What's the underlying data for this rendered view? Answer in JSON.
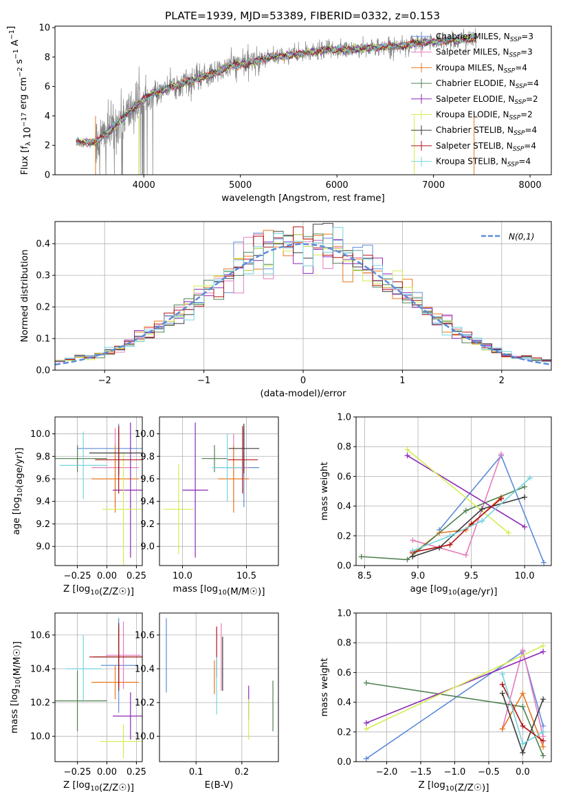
{
  "title": "PLATE=1939, MJD=53389, FIBERID=0332, z=0.153",
  "colors": {
    "Chabrier MILES": "#5b8bd9",
    "Salpeter MILES": "#e57bbc",
    "Kroupa MILES": "#e8761c",
    "Chabrier ELODIE": "#4f8050",
    "Salpeter ELODIE": "#8c27b5",
    "Kroupa ELODIE": "#d4ec4e",
    "Chabrier STELIB": "#3a3a3a",
    "Salpeter STELIB": "#b01010",
    "Kroupa STELIB": "#72d4e0",
    "observed": "#808080",
    "normal": "#5b8bd9"
  },
  "chart_data": [
    {
      "type": "line",
      "id": "spectrum",
      "xlabel": "wavelength [Angstrom, rest frame]",
      "ylabel": "Flux [f_λ 10^-17 erg cm^-2 s^-1 A^-1]",
      "xlim": [
        3080,
        8220
      ],
      "ylim": [
        0,
        10.1
      ],
      "xticks": [
        4000,
        5000,
        6000,
        7000,
        8000
      ],
      "yticks": [
        0,
        2,
        4,
        6,
        8,
        10
      ],
      "legend": [
        {
          "label": "Chabrier MILES, N",
          "sub": "SSP",
          "eq": "=3"
        },
        {
          "label": "Salpeter MILES, N",
          "sub": "SSP",
          "eq": "=3"
        },
        {
          "label": "Kroupa MILES, N",
          "sub": "SSP",
          "eq": "=4"
        },
        {
          "label": "Chabrier ELODIE, N",
          "sub": "SSP",
          "eq": "=4"
        },
        {
          "label": "Salpeter ELODIE, N",
          "sub": "SSP",
          "eq": "=2"
        },
        {
          "label": "Kroupa ELODIE, N",
          "sub": "SSP",
          "eq": "=2"
        },
        {
          "label": "Chabrier STELIB, N",
          "sub": "SSP",
          "eq": "=4"
        },
        {
          "label": "Salpeter STELIB, N",
          "sub": "SSP",
          "eq": "=4"
        },
        {
          "label": "Kroupa STELIB, N",
          "sub": "SSP",
          "eq": "=4"
        }
      ],
      "continuum": {
        "x": [
          3300,
          3500,
          3700,
          3900,
          4100,
          4300,
          4500,
          4700,
          4900,
          5100,
          5300,
          5500,
          5700,
          5900,
          6100,
          6300,
          6500,
          6700,
          6900,
          7100,
          7300,
          7450
        ],
        "y": [
          2.2,
          2.2,
          3.3,
          4.6,
          5.6,
          6.0,
          6.4,
          6.8,
          7.4,
          7.6,
          8.0,
          8.1,
          8.3,
          8.5,
          8.5,
          8.6,
          8.7,
          8.8,
          9.0,
          9.1,
          9.2,
          9.3
        ]
      }
    },
    {
      "type": "histogram",
      "id": "residuals",
      "xlabel": "(data-model)/error",
      "ylabel": "Normed distribution",
      "xlim": [
        -2.5,
        2.5
      ],
      "ylim": [
        0,
        0.47
      ],
      "xticks": [
        -2,
        -1,
        0,
        1,
        2
      ],
      "yticks": [
        0.0,
        0.1,
        0.2,
        0.3,
        0.4
      ],
      "legend": "N(0,1)",
      "bins": 50
    },
    {
      "type": "scatter",
      "id": "age_vs_Z",
      "xlabel": "Z [log10(Z/Z☉)]",
      "ylabel": "age [log10(age/yr)]",
      "xlim": [
        -0.44,
        0.3
      ],
      "ylim": [
        8.83,
        10.15
      ],
      "xticks": [
        -0.25,
        0.0,
        0.25
      ],
      "yticks": [
        9.0,
        9.2,
        9.4,
        9.6,
        9.8,
        10.0
      ],
      "points": [
        {
          "model": "Chabrier MILES",
          "x": 0.1,
          "y": 9.87,
          "xerr": 0.35,
          "yerr": 0.22
        },
        {
          "model": "Salpeter MILES",
          "x": 0.07,
          "y": 9.7,
          "xerr": 0.2,
          "yerr": 0.35
        },
        {
          "model": "Kroupa MILES",
          "x": 0.07,
          "y": 9.6,
          "xerr": 0.2,
          "yerr": 0.3
        },
        {
          "model": "Chabrier ELODIE",
          "x": -0.25,
          "y": 9.78,
          "xerr": 0.25,
          "yerr": 0.12
        },
        {
          "model": "Salpeter ELODIE",
          "x": 0.2,
          "y": 9.5,
          "xerr": 0.15,
          "yerr": 0.6
        },
        {
          "model": "Kroupa ELODIE",
          "x": 0.14,
          "y": 9.33,
          "xerr": 0.18,
          "yerr": 0.5
        },
        {
          "model": "Chabrier STELIB",
          "x": 0.1,
          "y": 9.83,
          "xerr": 0.25,
          "yerr": 0.2
        },
        {
          "model": "Salpeter STELIB",
          "x": 0.1,
          "y": 9.77,
          "xerr": 0.2,
          "yerr": 0.3
        },
        {
          "model": "Kroupa STELIB",
          "x": -0.2,
          "y": 9.72,
          "xerr": 0.2,
          "yerr": 0.3
        }
      ]
    },
    {
      "type": "scatter",
      "id": "age_vs_mass",
      "xlabel": "mass [log10(M/M☉)]",
      "ylabel": "",
      "xlim": [
        9.82,
        10.75
      ],
      "ylim": [
        8.83,
        10.15
      ],
      "xticks": [
        10.0,
        10.5
      ],
      "yticks": [
        9.0,
        9.2,
        9.4,
        9.6,
        9.8,
        10.0
      ],
      "points": [
        {
          "model": "Chabrier MILES",
          "x": 10.48,
          "y": 9.7,
          "xerr": 0.12,
          "yerr": 0.35
        },
        {
          "model": "Salpeter MILES",
          "x": 10.4,
          "y": 9.7,
          "xerr": 0.12,
          "yerr": 0.3
        },
        {
          "model": "Kroupa MILES",
          "x": 10.4,
          "y": 9.6,
          "xerr": 0.12,
          "yerr": 0.3
        },
        {
          "model": "Chabrier ELODIE",
          "x": 10.25,
          "y": 9.78,
          "xerr": 0.1,
          "yerr": 0.12
        },
        {
          "model": "Salpeter ELODIE",
          "x": 10.1,
          "y": 9.5,
          "xerr": 0.1,
          "yerr": 0.6
        },
        {
          "model": "Kroupa ELODIE",
          "x": 9.97,
          "y": 9.33,
          "xerr": 0.12,
          "yerr": 0.4
        },
        {
          "model": "Chabrier STELIB",
          "x": 10.48,
          "y": 9.87,
          "xerr": 0.12,
          "yerr": 0.22
        },
        {
          "model": "Salpeter STELIB",
          "x": 10.47,
          "y": 9.77,
          "xerr": 0.12,
          "yerr": 0.3
        },
        {
          "model": "Kroupa STELIB",
          "x": 10.35,
          "y": 9.7,
          "xerr": 0.12,
          "yerr": 0.3
        }
      ]
    },
    {
      "type": "line",
      "id": "weight_vs_age",
      "xlabel": "age [log10(age/yr)]",
      "ylabel": "mass weight",
      "xlim": [
        8.42,
        10.25
      ],
      "ylim": [
        0,
        1.0
      ],
      "xticks": [
        8.5,
        9.0,
        9.5,
        10.0
      ],
      "yticks": [
        0.0,
        0.2,
        0.4,
        0.6,
        0.8,
        1.0
      ],
      "series": [
        {
          "model": "Chabrier MILES",
          "x": [
            9.2,
            9.78,
            10.18
          ],
          "y": [
            0.24,
            0.74,
            0.02
          ]
        },
        {
          "model": "Salpeter MILES",
          "x": [
            8.95,
            9.45,
            9.78
          ],
          "y": [
            0.17,
            0.07,
            0.75
          ]
        },
        {
          "model": "Kroupa MILES",
          "x": [
            8.95,
            9.2,
            9.45,
            9.78
          ],
          "y": [
            0.08,
            0.22,
            0.24,
            0.46
          ]
        },
        {
          "model": "Chabrier ELODIE",
          "x": [
            8.47,
            8.9,
            9.45,
            10.0
          ],
          "y": [
            0.06,
            0.04,
            0.37,
            0.53
          ]
        },
        {
          "model": "Salpeter ELODIE",
          "x": [
            8.9,
            10.0
          ],
          "y": [
            0.74,
            0.26
          ]
        },
        {
          "model": "Kroupa ELODIE",
          "x": [
            8.9,
            9.85
          ],
          "y": [
            0.78,
            0.22
          ]
        },
        {
          "model": "Chabrier STELIB",
          "x": [
            8.95,
            9.2,
            9.6,
            10.0
          ],
          "y": [
            0.06,
            0.12,
            0.38,
            0.46
          ]
        },
        {
          "model": "Salpeter STELIB",
          "x": [
            8.95,
            9.3,
            9.5,
            9.78
          ],
          "y": [
            0.09,
            0.14,
            0.28,
            0.45
          ]
        },
        {
          "model": "Kroupa STELIB",
          "x": [
            8.95,
            9.3,
            9.6,
            10.05
          ],
          "y": [
            0.1,
            0.2,
            0.3,
            0.59
          ]
        }
      ]
    },
    {
      "type": "scatter",
      "id": "mass_vs_Z",
      "xlabel": "Z [log10(Z/Z☉)]",
      "ylabel": "mass [log10(M/M☉)]",
      "xlim": [
        -0.44,
        0.3
      ],
      "ylim": [
        9.85,
        10.73
      ],
      "xticks": [
        -0.25,
        0.0,
        0.25
      ],
      "yticks": [
        10.0,
        10.2,
        10.4,
        10.6
      ],
      "points": [
        {
          "model": "Chabrier MILES",
          "x": 0.1,
          "y": 10.42,
          "xerr": 0.15,
          "yerr": 0.28
        },
        {
          "model": "Salpeter MILES",
          "x": 0.14,
          "y": 10.48,
          "xerr": 0.15,
          "yerr": 0.2
        },
        {
          "model": "Kroupa MILES",
          "x": 0.07,
          "y": 10.32,
          "xerr": 0.2,
          "yerr": 0.1
        },
        {
          "model": "Chabrier ELODIE",
          "x": -0.25,
          "y": 10.21,
          "xerr": 0.25,
          "yerr": 0.18
        },
        {
          "model": "Salpeter ELODIE",
          "x": 0.2,
          "y": 10.12,
          "xerr": 0.15,
          "yerr": 0.14
        },
        {
          "model": "Kroupa ELODIE",
          "x": 0.14,
          "y": 9.97,
          "xerr": 0.2,
          "yerr": 0.1
        },
        {
          "model": "Chabrier STELIB",
          "x": 0.1,
          "y": 10.47,
          "xerr": 0.22,
          "yerr": 0.2
        },
        {
          "model": "Salpeter STELIB",
          "x": 0.1,
          "y": 10.47,
          "xerr": 0.25,
          "yerr": 0.18
        },
        {
          "model": "Kroupa STELIB",
          "x": -0.2,
          "y": 10.4,
          "xerr": 0.15,
          "yerr": 0.2
        }
      ]
    },
    {
      "type": "scatter",
      "id": "mass_vs_ebv",
      "xlabel": "E(B-V)",
      "ylabel": "",
      "xlim": [
        0.02,
        0.28
      ],
      "ylim": [
        9.85,
        10.73
      ],
      "xticks": [
        0.1,
        0.2
      ],
      "yticks": [
        10.0,
        10.2,
        10.4,
        10.6
      ],
      "points": [
        {
          "model": "Chabrier MILES",
          "x": 0.035,
          "y": 10.48,
          "xerr": 0,
          "yerr": 0.22
        },
        {
          "model": "Salpeter MILES",
          "x": 0.155,
          "y": 10.47,
          "xerr": 0,
          "yerr": 0.2
        },
        {
          "model": "Kroupa MILES",
          "x": 0.14,
          "y": 10.35,
          "xerr": 0,
          "yerr": 0.1
        },
        {
          "model": "Chabrier ELODIE",
          "x": 0.268,
          "y": 10.18,
          "xerr": 0,
          "yerr": 0.15
        },
        {
          "model": "Salpeter ELODIE",
          "x": 0.215,
          "y": 10.2,
          "xerr": 0,
          "yerr": 0.1
        },
        {
          "model": "Kroupa ELODIE",
          "x": 0.215,
          "y": 10.1,
          "xerr": 0,
          "yerr": 0.12
        },
        {
          "model": "Chabrier STELIB",
          "x": 0.158,
          "y": 10.43,
          "xerr": 0,
          "yerr": 0.16
        },
        {
          "model": "Salpeter STELIB",
          "x": 0.145,
          "y": 10.5,
          "xerr": 0,
          "yerr": 0.15
        },
        {
          "model": "Kroupa STELIB",
          "x": 0.145,
          "y": 10.3,
          "xerr": 0,
          "yerr": 0.17
        }
      ]
    },
    {
      "type": "line",
      "id": "weight_vs_Z",
      "xlabel": "Z [log10(Z/Z☉)]",
      "ylabel": "mass weight",
      "xlim": [
        -2.45,
        0.42
      ],
      "ylim": [
        0,
        1.0
      ],
      "xticks": [
        -2.0,
        -1.5,
        -1.0,
        -0.5,
        0.0
      ],
      "yticks": [
        0.0,
        0.2,
        0.4,
        0.6,
        0.8,
        1.0
      ],
      "series": [
        {
          "model": "Chabrier MILES",
          "x": [
            -2.3,
            0.0,
            0.3
          ],
          "y": [
            0.02,
            0.74,
            0.24
          ]
        },
        {
          "model": "Salpeter MILES",
          "x": [
            -0.3,
            0.0,
            0.3
          ],
          "y": [
            0.22,
            0.75,
            0.17
          ]
        },
        {
          "model": "Kroupa MILES",
          "x": [
            -0.3,
            0.0,
            0.3
          ],
          "y": [
            0.22,
            0.46,
            0.1
          ]
        },
        {
          "model": "Chabrier ELODIE",
          "x": [
            -2.3,
            0.0,
            0.3
          ],
          "y": [
            0.53,
            0.37,
            0.04
          ]
        },
        {
          "model": "Salpeter ELODIE",
          "x": [
            -2.3,
            0.3
          ],
          "y": [
            0.26,
            0.74
          ]
        },
        {
          "model": "Kroupa ELODIE",
          "x": [
            -2.3,
            0.3
          ],
          "y": [
            0.22,
            0.78
          ]
        },
        {
          "model": "Chabrier STELIB",
          "x": [
            -0.3,
            0.0,
            0.3
          ],
          "y": [
            0.46,
            0.06,
            0.42
          ]
        },
        {
          "model": "Salpeter STELIB",
          "x": [
            -0.3,
            0.0,
            0.3
          ],
          "y": [
            0.52,
            0.24,
            0.14
          ]
        },
        {
          "model": "Kroupa STELIB",
          "x": [
            -0.3,
            0.0,
            0.3
          ],
          "y": [
            0.59,
            0.12,
            0.2
          ]
        }
      ]
    }
  ]
}
